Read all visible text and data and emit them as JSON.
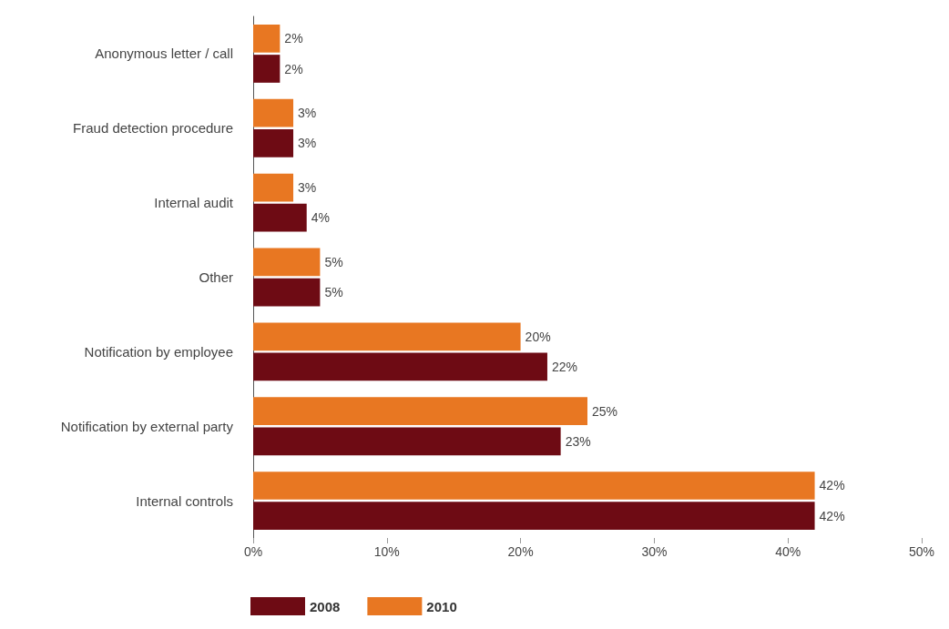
{
  "chart_data": {
    "type": "bar",
    "orientation": "horizontal",
    "categories": [
      "Anonymous letter / call",
      "Fraud detection procedure",
      "Internal audit",
      "Other",
      "Notification by employee",
      "Notification by external party",
      "Internal controls"
    ],
    "series": [
      {
        "name": "2008",
        "color": "#6e0b14",
        "values": [
          2,
          3,
          4,
          5,
          22,
          23,
          42
        ],
        "value_labels": [
          "2%",
          "3%",
          "4%",
          "5%",
          "22%",
          "23%",
          "42%"
        ]
      },
      {
        "name": "2010",
        "color": "#e87722",
        "values": [
          2,
          3,
          3,
          5,
          20,
          25,
          42
        ],
        "value_labels": [
          "2%",
          "3%",
          "3%",
          "5%",
          "20%",
          "25%",
          "42%"
        ]
      }
    ],
    "xlim": [
      0,
      50
    ],
    "xticks": [
      {
        "value": 0,
        "label": "0%"
      },
      {
        "value": 10,
        "label": "10%"
      },
      {
        "value": 20,
        "label": "20%"
      },
      {
        "value": 30,
        "label": "30%"
      },
      {
        "value": 40,
        "label": "40%"
      },
      {
        "value": 50,
        "label": "50%"
      }
    ],
    "grid": false,
    "legend": "bottom left"
  }
}
